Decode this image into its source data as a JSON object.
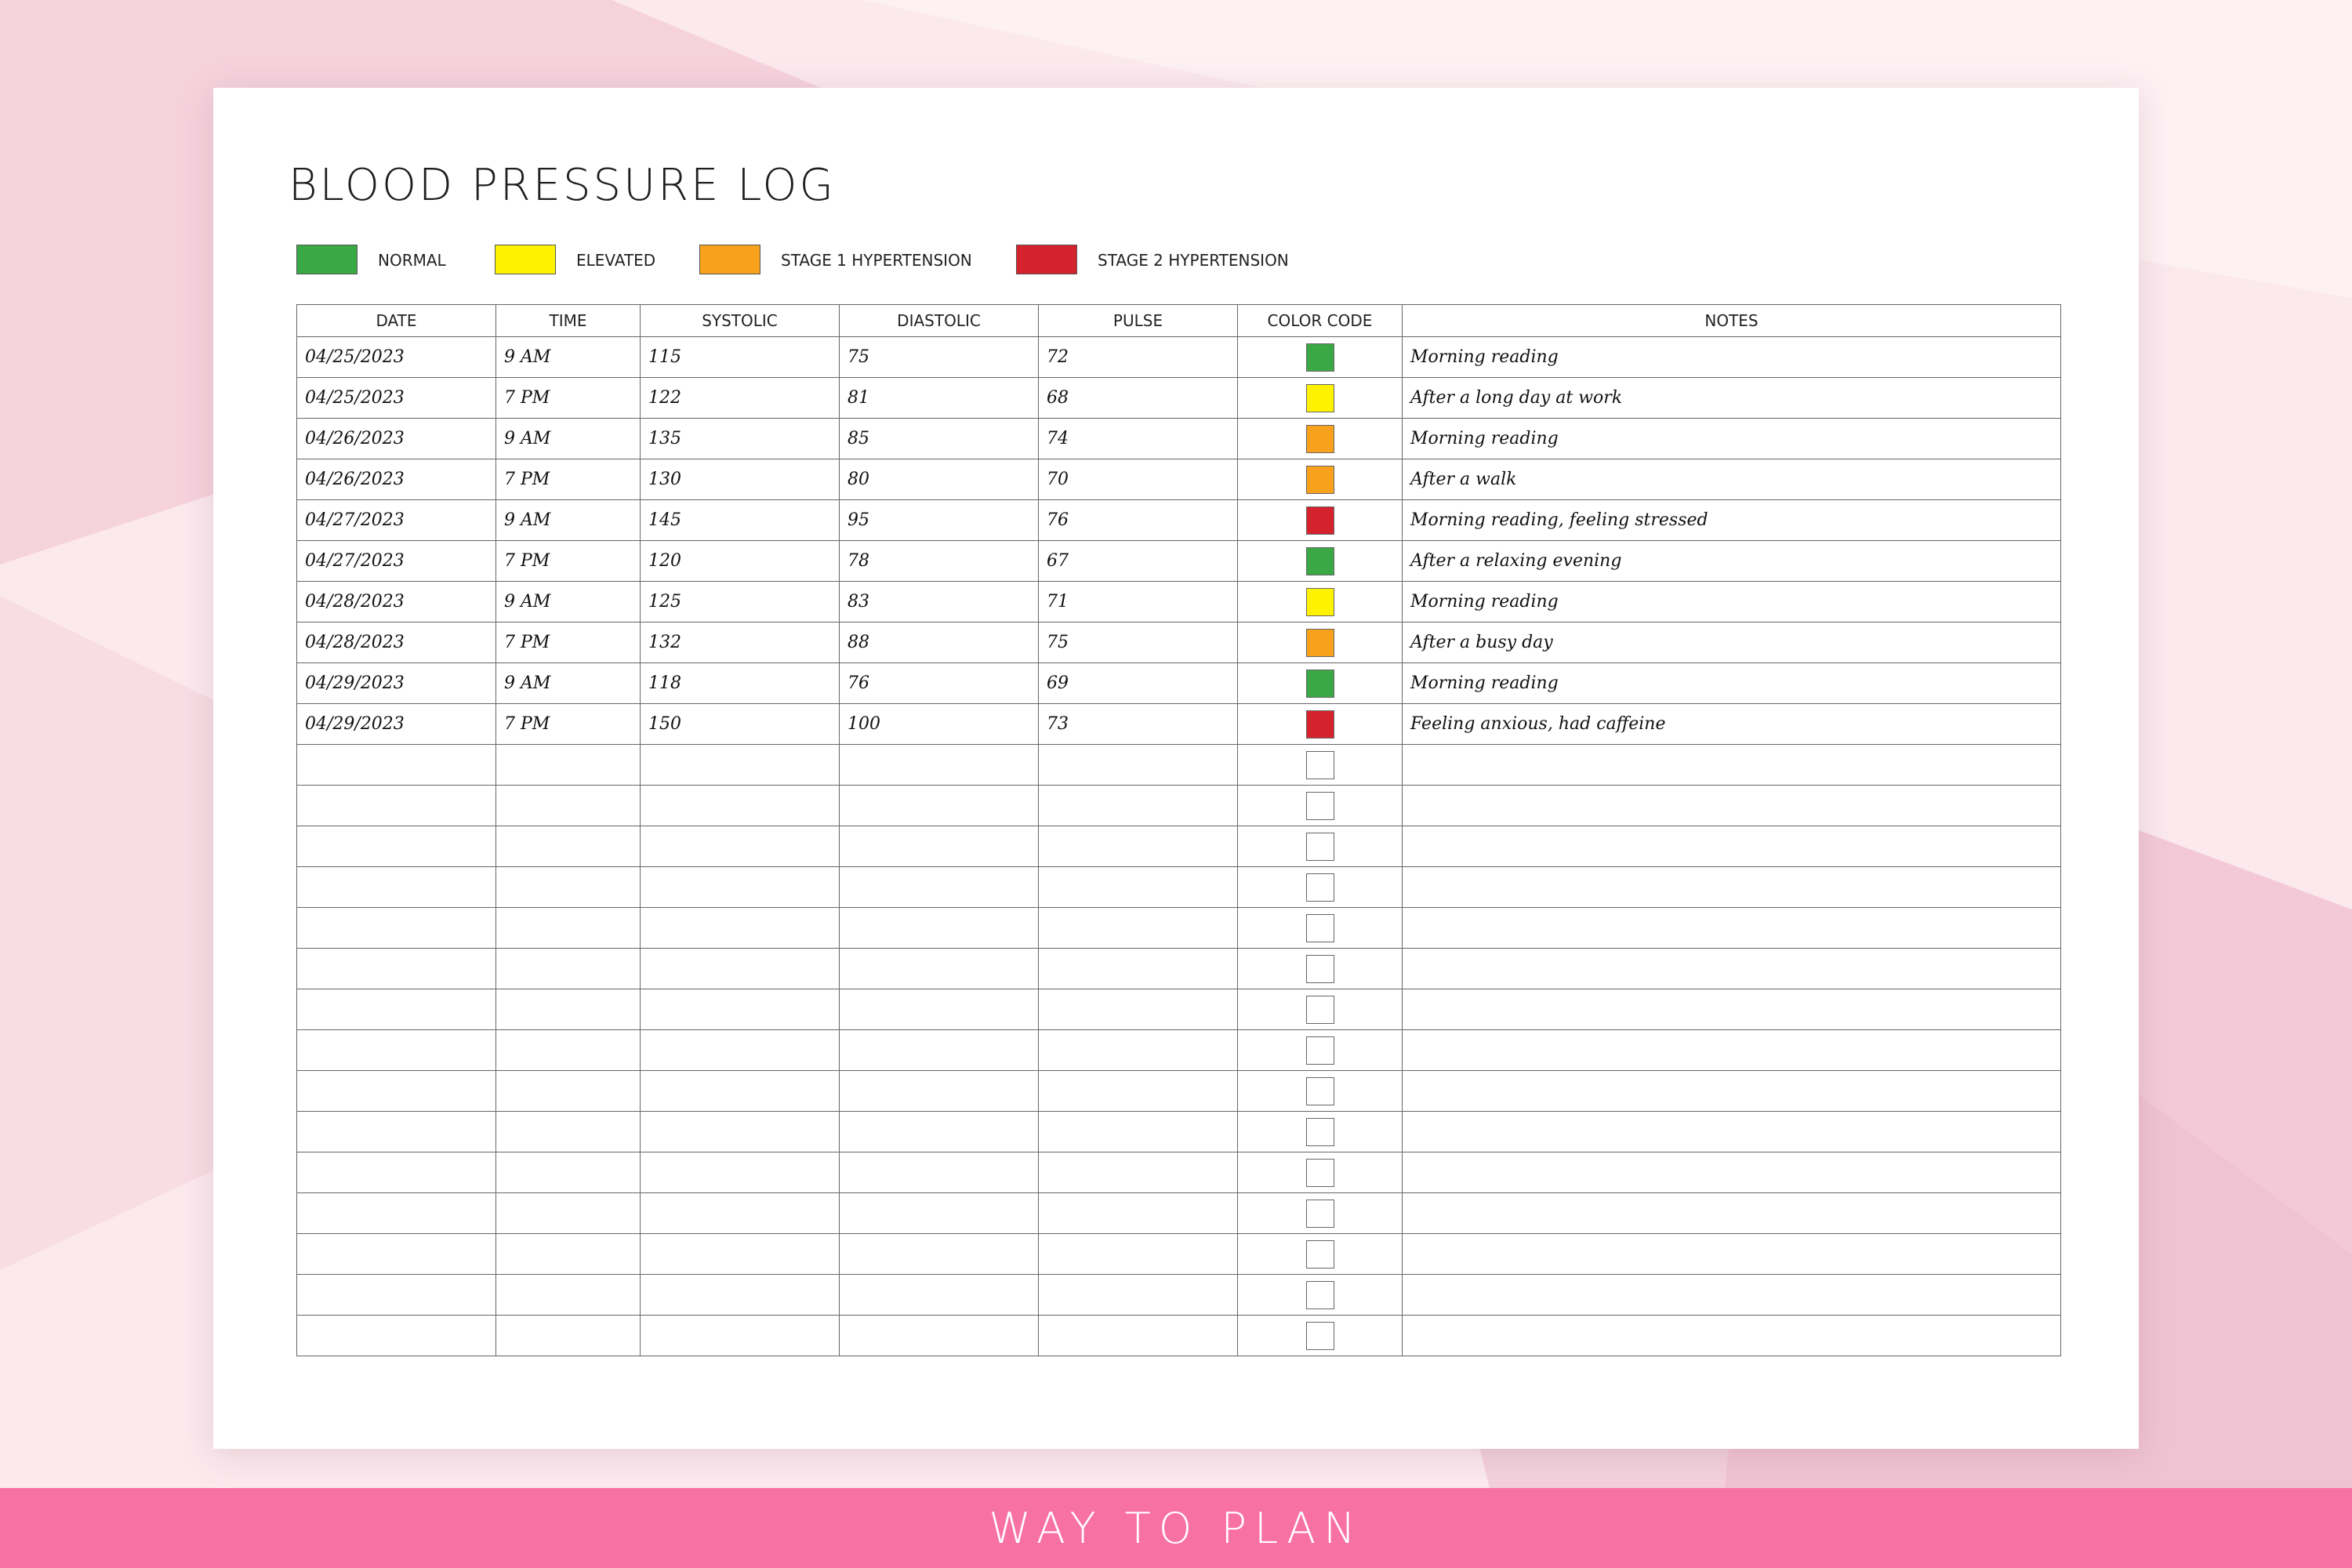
{
  "colors": {
    "page_background": "#fbe9ee",
    "sheet": "#ffffff",
    "footer": "#f871a3",
    "normal": "#3aa845",
    "elevated": "#fff200",
    "stage1": "#f7a11c",
    "stage2": "#d5232e",
    "empty": "#ffffff"
  },
  "sheet": {
    "title": "BLOOD PRESSURE LOG",
    "legend": [
      {
        "label": "NORMAL",
        "color": "#3aa845"
      },
      {
        "label": "ELEVATED",
        "color": "#fff200"
      },
      {
        "label": "STAGE 1 HYPERTENSION",
        "color": "#f7a11c"
      },
      {
        "label": "STAGE 2 HYPERTENSION",
        "color": "#d5232e"
      }
    ],
    "columns": [
      "DATE",
      "TIME",
      "SYSTOLIC",
      "DIASTOLIC",
      "PULSE",
      "COLOR CODE",
      "NOTES"
    ],
    "rows": [
      {
        "date": "04/25/2023",
        "time": "9 AM",
        "systolic": "115",
        "diastolic": "75",
        "pulse": "72",
        "code": "normal",
        "notes": "Morning reading"
      },
      {
        "date": "04/25/2023",
        "time": "7 PM",
        "systolic": "122",
        "diastolic": "81",
        "pulse": "68",
        "code": "elevated",
        "notes": "After a long day at work"
      },
      {
        "date": "04/26/2023",
        "time": "9 AM",
        "systolic": "135",
        "diastolic": "85",
        "pulse": "74",
        "code": "stage1",
        "notes": "Morning reading"
      },
      {
        "date": "04/26/2023",
        "time": "7 PM",
        "systolic": "130",
        "diastolic": "80",
        "pulse": "70",
        "code": "stage1",
        "notes": "After a walk"
      },
      {
        "date": "04/27/2023",
        "time": "9 AM",
        "systolic": "145",
        "diastolic": "95",
        "pulse": "76",
        "code": "stage2",
        "notes": "Morning reading, feeling stressed"
      },
      {
        "date": "04/27/2023",
        "time": "7 PM",
        "systolic": "120",
        "diastolic": "78",
        "pulse": "67",
        "code": "normal",
        "notes": "After a relaxing evening"
      },
      {
        "date": "04/28/2023",
        "time": "9 AM",
        "systolic": "125",
        "diastolic": "83",
        "pulse": "71",
        "code": "elevated",
        "notes": "Morning reading"
      },
      {
        "date": "04/28/2023",
        "time": "7 PM",
        "systolic": "132",
        "diastolic": "88",
        "pulse": "75",
        "code": "stage1",
        "notes": "After a busy day"
      },
      {
        "date": "04/29/2023",
        "time": "9 AM",
        "systolic": "118",
        "diastolic": "76",
        "pulse": "69",
        "code": "normal",
        "notes": "Morning reading"
      },
      {
        "date": "04/29/2023",
        "time": "7 PM",
        "systolic": "150",
        "diastolic": "100",
        "pulse": "73",
        "code": "stage2",
        "notes": "Feeling anxious, had caffeine"
      },
      {
        "date": "",
        "time": "",
        "systolic": "",
        "diastolic": "",
        "pulse": "",
        "code": "empty",
        "notes": ""
      },
      {
        "date": "",
        "time": "",
        "systolic": "",
        "diastolic": "",
        "pulse": "",
        "code": "empty",
        "notes": ""
      },
      {
        "date": "",
        "time": "",
        "systolic": "",
        "diastolic": "",
        "pulse": "",
        "code": "empty",
        "notes": ""
      },
      {
        "date": "",
        "time": "",
        "systolic": "",
        "diastolic": "",
        "pulse": "",
        "code": "empty",
        "notes": ""
      },
      {
        "date": "",
        "time": "",
        "systolic": "",
        "diastolic": "",
        "pulse": "",
        "code": "empty",
        "notes": ""
      },
      {
        "date": "",
        "time": "",
        "systolic": "",
        "diastolic": "",
        "pulse": "",
        "code": "empty",
        "notes": ""
      },
      {
        "date": "",
        "time": "",
        "systolic": "",
        "diastolic": "",
        "pulse": "",
        "code": "empty",
        "notes": ""
      },
      {
        "date": "",
        "time": "",
        "systolic": "",
        "diastolic": "",
        "pulse": "",
        "code": "empty",
        "notes": ""
      },
      {
        "date": "",
        "time": "",
        "systolic": "",
        "diastolic": "",
        "pulse": "",
        "code": "empty",
        "notes": ""
      },
      {
        "date": "",
        "time": "",
        "systolic": "",
        "diastolic": "",
        "pulse": "",
        "code": "empty",
        "notes": ""
      },
      {
        "date": "",
        "time": "",
        "systolic": "",
        "diastolic": "",
        "pulse": "",
        "code": "empty",
        "notes": ""
      },
      {
        "date": "",
        "time": "",
        "systolic": "",
        "diastolic": "",
        "pulse": "",
        "code": "empty",
        "notes": ""
      },
      {
        "date": "",
        "time": "",
        "systolic": "",
        "diastolic": "",
        "pulse": "",
        "code": "empty",
        "notes": ""
      },
      {
        "date": "",
        "time": "",
        "systolic": "",
        "diastolic": "",
        "pulse": "",
        "code": "empty",
        "notes": ""
      },
      {
        "date": "",
        "time": "",
        "systolic": "",
        "diastolic": "",
        "pulse": "",
        "code": "empty",
        "notes": ""
      }
    ]
  },
  "footer": {
    "text": "WAY TO PLAN"
  }
}
